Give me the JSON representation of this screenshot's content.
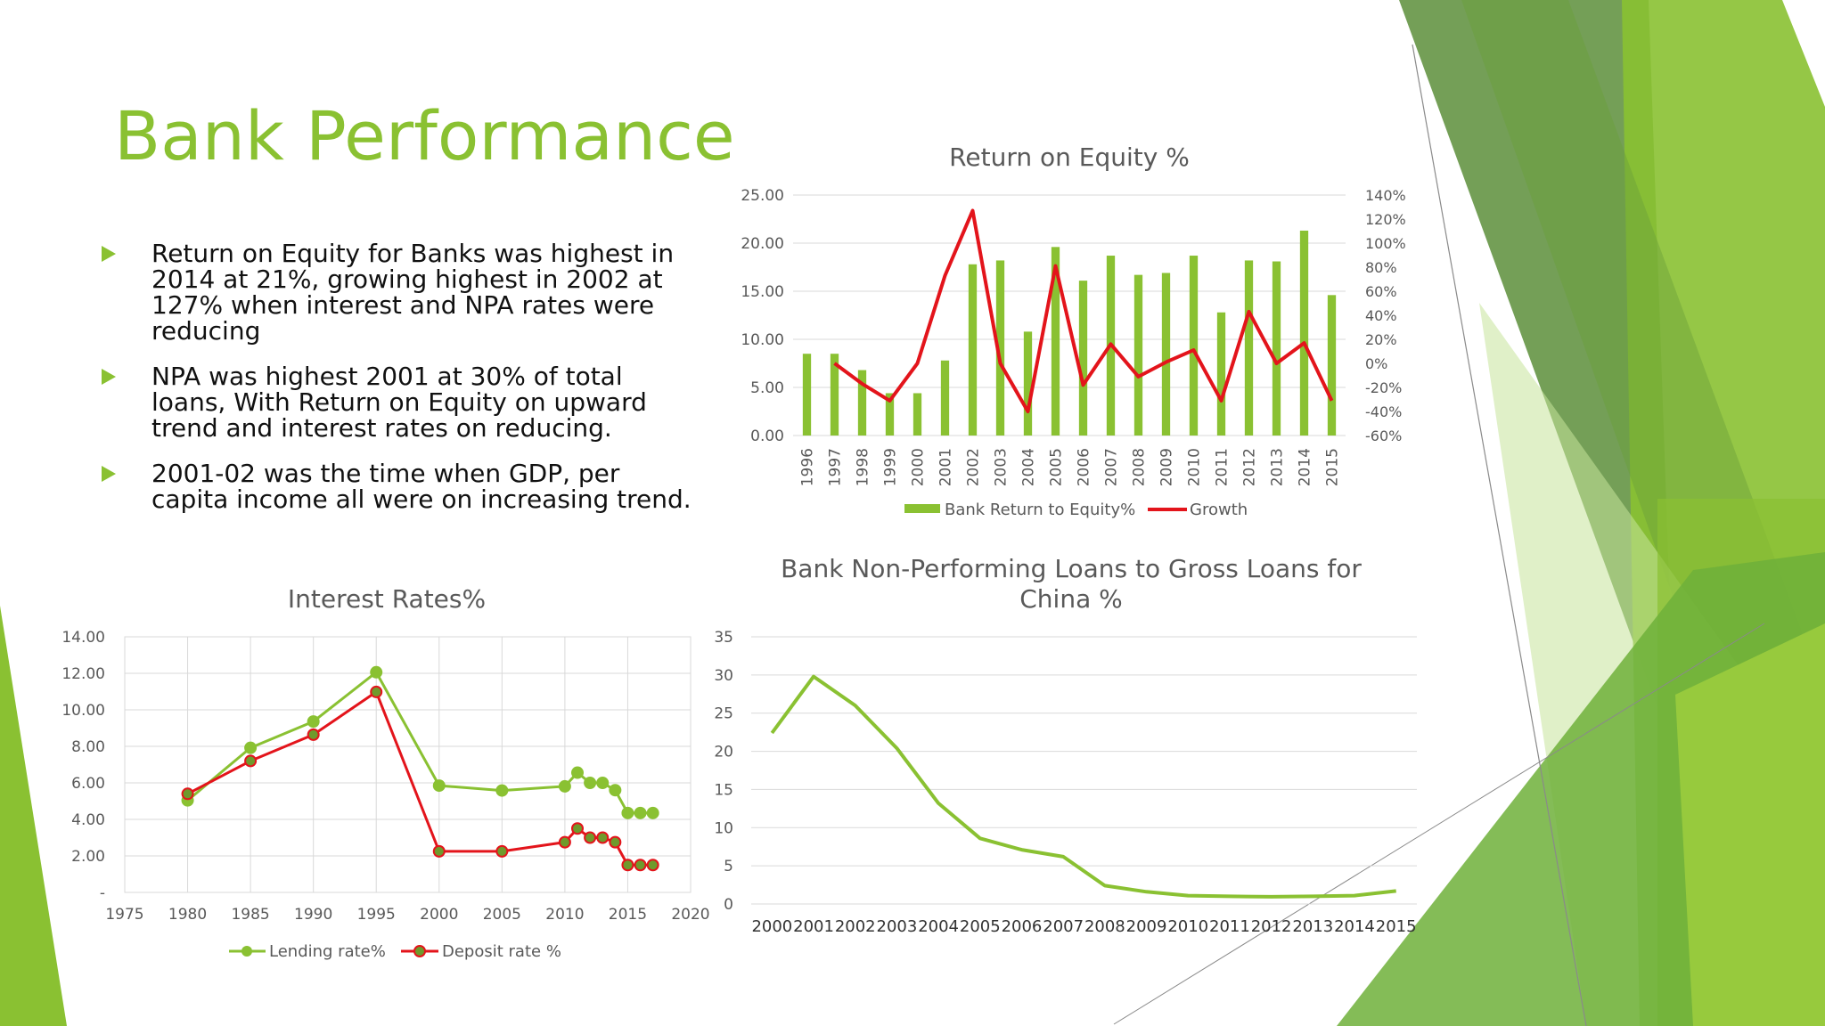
{
  "slide": {
    "title": "Bank Performance",
    "bullets": [
      "Return on Equity for Banks was highest in 2014 at  21%, growing highest in 2002 at 127% when interest and NPA rates were reducing",
      "NPA was highest 2001 at 30% of total loans, With Return on Equity on upward trend and interest rates on reducing.",
      "2001-02 was the time when GDP, per capita income all were on increasing trend."
    ]
  },
  "colors": {
    "accent": "#8ac132",
    "red": "#e3141b",
    "grid": "#d9d9d9",
    "text": "#595959"
  },
  "chart_data": [
    {
      "id": "roe",
      "type": "bar",
      "title": "Return on Equity %",
      "categories": [
        "1996",
        "1997",
        "1998",
        "1999",
        "2000",
        "2001",
        "2002",
        "2003",
        "2004",
        "2005",
        "2006",
        "2007",
        "2008",
        "2009",
        "2010",
        "2011",
        "2012",
        "2013",
        "2014",
        "2015"
      ],
      "series": [
        {
          "name": "Bank Return to Equity%",
          "type": "bar",
          "axis": "left",
          "color": "#8ac132",
          "values": [
            8.5,
            8.5,
            6.8,
            4.4,
            4.4,
            7.8,
            17.8,
            18.2,
            10.8,
            19.6,
            16.1,
            18.7,
            16.7,
            16.9,
            18.7,
            12.8,
            18.2,
            18.1,
            21.3,
            14.6
          ]
        },
        {
          "name": "Growth",
          "type": "line",
          "axis": "right",
          "color": "#e3141b",
          "values": [
            null,
            0,
            -17,
            -31,
            0,
            73,
            127,
            0,
            -40,
            81,
            -18,
            16,
            -11,
            1,
            11,
            -31,
            43,
            0,
            17,
            -31
          ]
        }
      ],
      "y_left": {
        "min": 0,
        "max": 25,
        "ticks": [
          "0.00",
          "5.00",
          "10.00",
          "15.00",
          "20.00",
          "25.00"
        ]
      },
      "y_right": {
        "min": -60,
        "max": 140,
        "ticks": [
          "-60%",
          "-40%",
          "-20%",
          "0%",
          "20%",
          "40%",
          "60%",
          "80%",
          "100%",
          "120%",
          "140%"
        ]
      },
      "legend": "bottom",
      "grid": true
    },
    {
      "id": "interest",
      "type": "scatter",
      "title": "Interest Rates%",
      "series": [
        {
          "name": "Lending rate%",
          "color": "#8ac132",
          "x": [
            1980,
            1985,
            1990,
            1995,
            2000,
            2005,
            2010,
            2011,
            2012,
            2013,
            2014,
            2015,
            2016,
            2017
          ],
          "y": [
            5.04,
            7.92,
            9.36,
            12.06,
            5.85,
            5.58,
            5.81,
            6.56,
            6.0,
            6.0,
            5.6,
            4.35,
            4.35,
            4.35
          ]
        },
        {
          "name": "Deposit rate %",
          "color": "#e3141b",
          "x": [
            1980,
            1985,
            1990,
            1995,
            2000,
            2005,
            2010,
            2011,
            2012,
            2013,
            2014,
            2015,
            2016,
            2017
          ],
          "y": [
            5.4,
            7.2,
            8.64,
            10.98,
            2.25,
            2.25,
            2.75,
            3.5,
            3.0,
            3.0,
            2.75,
            1.5,
            1.5,
            1.5
          ]
        }
      ],
      "x_axis": {
        "min": 1975,
        "max": 2020,
        "ticks": [
          "1975",
          "1980",
          "1985",
          "1990",
          "1995",
          "2000",
          "2005",
          "2010",
          "2015",
          "2020"
        ]
      },
      "y_axis": {
        "min": 0,
        "max": 14,
        "ticks": [
          "-",
          "2.00",
          "4.00",
          "6.00",
          "8.00",
          "10.00",
          "12.00",
          "14.00"
        ]
      },
      "legend": "bottom",
      "grid": true
    },
    {
      "id": "npl",
      "type": "line",
      "title": "Bank Non-Performing Loans to Gross Loans for China %",
      "title_lines": [
        "Bank Non-Performing Loans to Gross Loans for",
        "China %"
      ],
      "categories": [
        "2000",
        "2001",
        "2002",
        "2003",
        "2004",
        "2005",
        "2006",
        "2007",
        "2008",
        "2009",
        "2010",
        "2011",
        "2012",
        "2013",
        "2014",
        "2015"
      ],
      "series": [
        {
          "color": "#8ac132",
          "values": [
            22.4,
            29.8,
            26.0,
            20.4,
            13.2,
            8.6,
            7.1,
            6.2,
            2.4,
            1.6,
            1.1,
            1.0,
            0.95,
            1.0,
            1.1,
            1.7
          ]
        }
      ],
      "y_axis": {
        "min": 0,
        "max": 35,
        "ticks": [
          "0",
          "5",
          "10",
          "15",
          "20",
          "25",
          "30",
          "35"
        ]
      },
      "grid": true
    }
  ]
}
